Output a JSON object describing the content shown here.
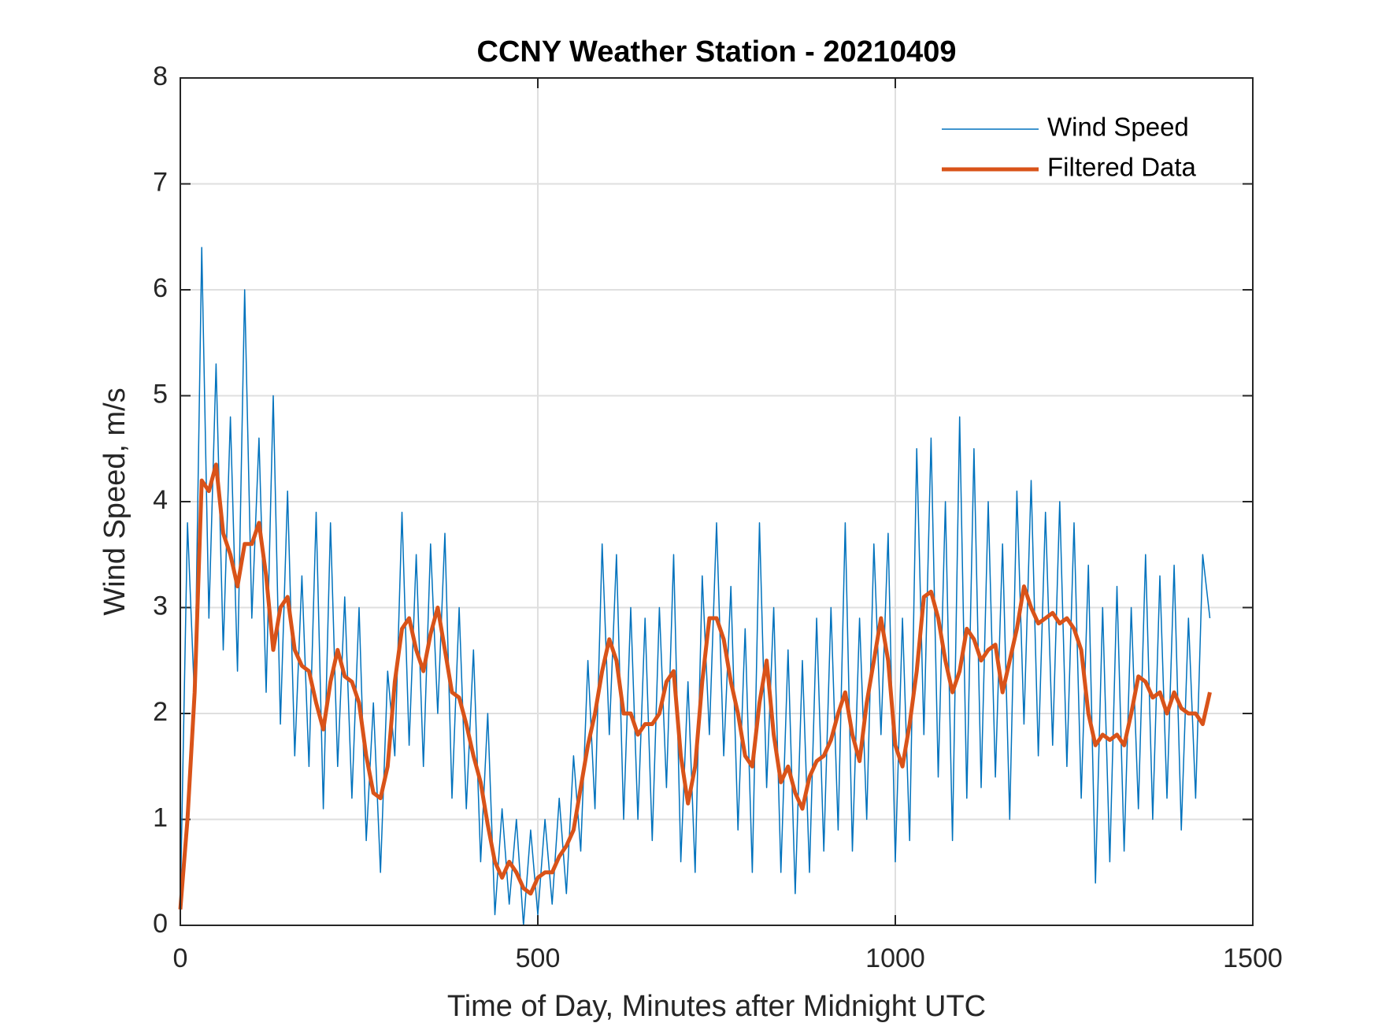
{
  "chart_data": {
    "type": "line",
    "title": "CCNY Weather Station - 20210409",
    "xlabel": "Time of Day, Minutes after Midnight UTC",
    "ylabel": "Wind Speed, m/s",
    "xlim": [
      0,
      1500
    ],
    "xticks": [
      0,
      500,
      1000,
      1500
    ],
    "ylim": [
      0,
      8
    ],
    "yticks": [
      0,
      1,
      2,
      3,
      4,
      5,
      6,
      7,
      8
    ],
    "grid": true,
    "legend": "upper right",
    "x": [
      0,
      10,
      20,
      30,
      40,
      50,
      60,
      70,
      80,
      90,
      100,
      110,
      120,
      130,
      140,
      150,
      160,
      170,
      180,
      190,
      200,
      210,
      220,
      230,
      240,
      250,
      260,
      270,
      280,
      290,
      300,
      310,
      320,
      330,
      340,
      350,
      360,
      370,
      380,
      390,
      400,
      410,
      420,
      430,
      440,
      450,
      460,
      470,
      480,
      490,
      500,
      510,
      520,
      530,
      540,
      550,
      560,
      570,
      580,
      590,
      600,
      610,
      620,
      630,
      640,
      650,
      660,
      670,
      680,
      690,
      700,
      710,
      720,
      730,
      740,
      750,
      760,
      770,
      780,
      790,
      800,
      810,
      820,
      830,
      840,
      850,
      860,
      870,
      880,
      890,
      900,
      910,
      920,
      930,
      940,
      950,
      960,
      970,
      980,
      990,
      1000,
      1010,
      1020,
      1030,
      1040,
      1050,
      1060,
      1070,
      1080,
      1090,
      1100,
      1110,
      1120,
      1130,
      1140,
      1150,
      1160,
      1170,
      1180,
      1190,
      1200,
      1210,
      1220,
      1230,
      1240,
      1250,
      1260,
      1270,
      1280,
      1290,
      1300,
      1310,
      1320,
      1330,
      1340,
      1350,
      1360,
      1370,
      1380,
      1390,
      1400,
      1410,
      1420,
      1430,
      1440
    ],
    "series": [
      {
        "name": "Wind Speed",
        "color": "#0072bd",
        "width": 1.5,
        "values": [
          0.2,
          3.8,
          2.1,
          6.4,
          2.9,
          5.3,
          2.6,
          4.8,
          2.4,
          6.0,
          2.9,
          4.6,
          2.2,
          5.0,
          1.9,
          4.1,
          1.6,
          3.3,
          1.5,
          3.9,
          1.1,
          3.8,
          1.5,
          3.1,
          1.2,
          3.0,
          0.8,
          2.1,
          0.5,
          2.4,
          1.6,
          3.9,
          1.7,
          3.5,
          1.5,
          3.6,
          2.0,
          3.7,
          1.2,
          3.0,
          1.1,
          2.6,
          0.6,
          2.0,
          0.1,
          1.1,
          0.2,
          1.0,
          0.0,
          0.9,
          0.1,
          1.0,
          0.2,
          1.2,
          0.3,
          1.6,
          0.7,
          2.5,
          1.1,
          3.6,
          1.8,
          3.5,
          1.0,
          3.0,
          1.0,
          2.9,
          0.8,
          3.0,
          1.3,
          3.5,
          0.6,
          2.3,
          0.5,
          3.3,
          1.8,
          3.8,
          1.6,
          3.2,
          0.9,
          2.8,
          0.5,
          3.8,
          1.3,
          3.0,
          0.5,
          2.6,
          0.3,
          2.5,
          0.5,
          2.9,
          0.7,
          3.0,
          0.9,
          3.8,
          0.7,
          2.9,
          1.0,
          3.6,
          1.8,
          3.7,
          0.6,
          2.9,
          0.8,
          4.5,
          1.8,
          4.6,
          1.4,
          4.0,
          0.8,
          4.8,
          1.2,
          4.5,
          1.3,
          4.0,
          1.4,
          3.6,
          1.0,
          4.1,
          1.9,
          4.2,
          1.6,
          3.9,
          1.7,
          4.0,
          1.5,
          3.8,
          1.2,
          3.4,
          0.4,
          3.0,
          0.6,
          3.2,
          0.7,
          3.0,
          1.1,
          3.5,
          1.0,
          3.3,
          1.2,
          3.4,
          0.9,
          2.9,
          1.2,
          3.5,
          2.9
        ]
      },
      {
        "name": "Filtered Data",
        "color": "#d95319",
        "width": 5,
        "values": [
          0.15,
          1.0,
          2.2,
          4.2,
          4.1,
          4.35,
          3.7,
          3.5,
          3.2,
          3.6,
          3.6,
          3.8,
          3.3,
          2.6,
          3.0,
          3.1,
          2.6,
          2.45,
          2.4,
          2.1,
          1.85,
          2.3,
          2.6,
          2.35,
          2.3,
          2.1,
          1.6,
          1.25,
          1.2,
          1.5,
          2.3,
          2.8,
          2.9,
          2.6,
          2.4,
          2.75,
          3.0,
          2.6,
          2.2,
          2.15,
          1.9,
          1.6,
          1.35,
          0.95,
          0.6,
          0.45,
          0.6,
          0.5,
          0.35,
          0.3,
          0.45,
          0.5,
          0.5,
          0.65,
          0.75,
          0.9,
          1.3,
          1.7,
          2.0,
          2.4,
          2.7,
          2.5,
          2.0,
          2.0,
          1.8,
          1.9,
          1.9,
          2.0,
          2.3,
          2.4,
          1.6,
          1.15,
          1.5,
          2.3,
          2.9,
          2.9,
          2.7,
          2.3,
          2.0,
          1.6,
          1.5,
          2.1,
          2.5,
          1.8,
          1.35,
          1.5,
          1.25,
          1.1,
          1.4,
          1.55,
          1.6,
          1.75,
          2.0,
          2.2,
          1.8,
          1.55,
          2.1,
          2.5,
          2.9,
          2.5,
          1.7,
          1.5,
          1.9,
          2.4,
          3.1,
          3.15,
          2.9,
          2.5,
          2.2,
          2.4,
          2.8,
          2.7,
          2.5,
          2.6,
          2.65,
          2.2,
          2.5,
          2.8,
          3.2,
          3.0,
          2.85,
          2.9,
          2.95,
          2.85,
          2.9,
          2.8,
          2.6,
          2.0,
          1.7,
          1.8,
          1.75,
          1.8,
          1.7,
          2.0,
          2.35,
          2.3,
          2.15,
          2.2,
          2.0,
          2.2,
          2.05,
          2.0,
          2.0,
          1.9,
          2.2
        ]
      }
    ]
  }
}
